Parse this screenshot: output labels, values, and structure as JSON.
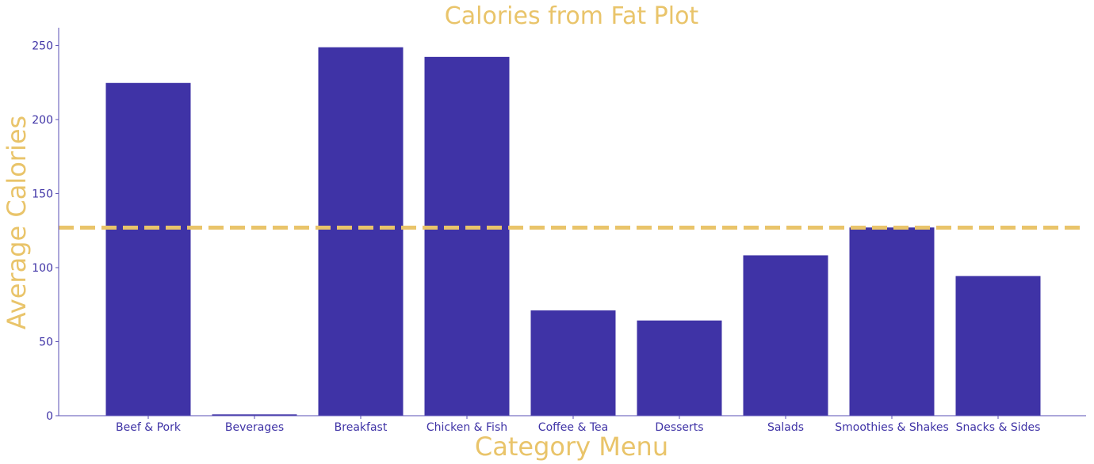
{
  "chart_data": {
    "type": "bar",
    "title": "Calories from Fat Plot",
    "xlabel": "Category Menu",
    "ylabel": "Average Calories",
    "categories": [
      "Beef & Pork",
      "Beverages",
      "Breakfast",
      "Chicken & Fish",
      "Coffee & Tea",
      "Desserts",
      "Salads",
      "Smoothies & Shakes",
      "Snacks & Sides"
    ],
    "values": [
      224.7,
      0.9,
      248.8,
      242.3,
      71.1,
      64.3,
      108.3,
      127.1,
      94.3
    ],
    "ylim": [
      0,
      262
    ],
    "yticks": [
      0,
      50,
      100,
      150,
      200,
      250
    ],
    "reference_line": 127,
    "grid": false,
    "colors": {
      "bar": "#3f33a6",
      "reference_line": "#e9c46a",
      "title": "#e9c46a",
      "axis_label": "#e9c46a",
      "tick_label": "#3f33a6",
      "axis": "#5a4fb5"
    }
  }
}
